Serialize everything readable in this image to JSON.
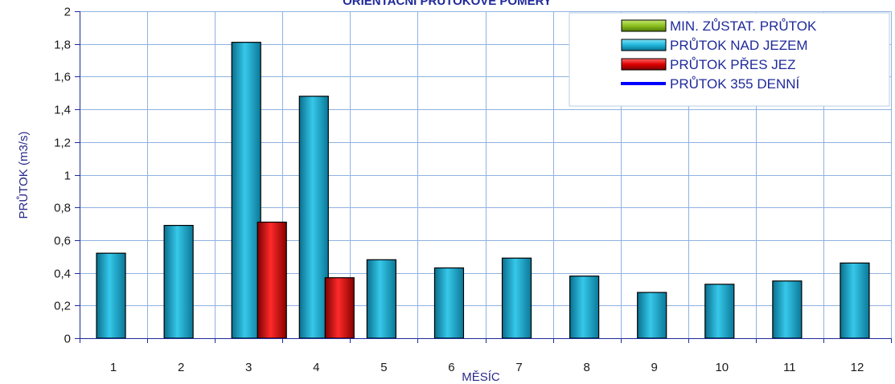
{
  "chart_data": {
    "type": "bar",
    "title": "ORIENTAČNÍ PRŮTOKOVÉ POMĚRY",
    "xlabel": "MĚSÍC",
    "ylabel": "PRŮTOK (m3/s)",
    "ylim": [
      0,
      2
    ],
    "yticks": [
      "0",
      "0,2",
      "0,4",
      "0,6",
      "0,8",
      "1",
      "1,2",
      "1,4",
      "1,6",
      "1,8",
      "2"
    ],
    "categories": [
      "1",
      "2",
      "3",
      "4",
      "5",
      "6",
      "7",
      "8",
      "9",
      "10",
      "11",
      "12"
    ],
    "grid": true,
    "legend_position": "top-right",
    "series": [
      {
        "name": "MIN. ZŮSTAT. PRŮTOK",
        "kind": "bar",
        "color": "#8cbf1f",
        "values": [
          0,
          0,
          0,
          0,
          0,
          0,
          0,
          0,
          0,
          0,
          0,
          0
        ]
      },
      {
        "name": "PRŮTOK NAD JEZEM",
        "kind": "bar",
        "color": "#1fb6dc",
        "values": [
          0.52,
          0.69,
          1.81,
          1.48,
          0.48,
          0.43,
          0.49,
          0.38,
          0.28,
          0.33,
          0.35,
          0.46
        ]
      },
      {
        "name": "PRŮTOK PŘES JEZ",
        "kind": "bar",
        "color": "#e00000",
        "values": [
          0,
          0,
          0.71,
          0.37,
          0,
          0,
          0,
          0,
          0,
          0,
          0,
          0
        ]
      },
      {
        "name": "PRŮTOK 355 DENNÍ",
        "kind": "line",
        "color": "#0000ff",
        "values": [
          0,
          0,
          0,
          0,
          0,
          0,
          0,
          0,
          0,
          0,
          0,
          0
        ]
      }
    ]
  }
}
